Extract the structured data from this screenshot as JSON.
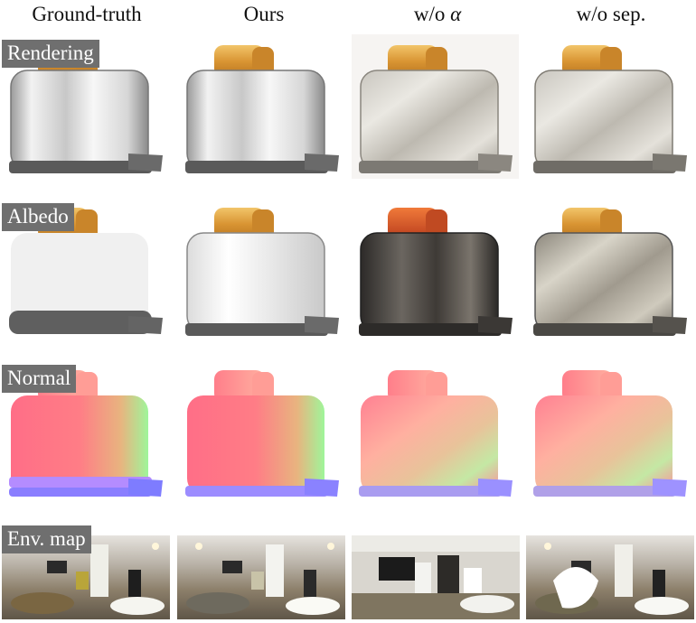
{
  "columns": [
    {
      "id": "gt",
      "label": "Ground-truth"
    },
    {
      "id": "ours",
      "label": "Ours"
    },
    {
      "id": "wo_alpha",
      "label_prefix": "w/o ",
      "label_symbol": "α"
    },
    {
      "id": "wo_sep",
      "label": "w/o sep."
    }
  ],
  "rows": [
    {
      "id": "rendering",
      "label": "Rendering"
    },
    {
      "id": "albedo",
      "label": "Albedo"
    },
    {
      "id": "normal",
      "label": "Normal"
    },
    {
      "id": "env",
      "label": "Env. map"
    }
  ],
  "colors": {
    "label_bg": "#6f6f6f",
    "toast": "#d9973a",
    "chrome_light": "#eeeeee",
    "chrome_dark": "#555555",
    "albedo_gt": "#f0f0f0",
    "normal_face": "#ff7a88",
    "normal_side": "#8dffaa",
    "normal_bottom": "#7f7fff"
  }
}
